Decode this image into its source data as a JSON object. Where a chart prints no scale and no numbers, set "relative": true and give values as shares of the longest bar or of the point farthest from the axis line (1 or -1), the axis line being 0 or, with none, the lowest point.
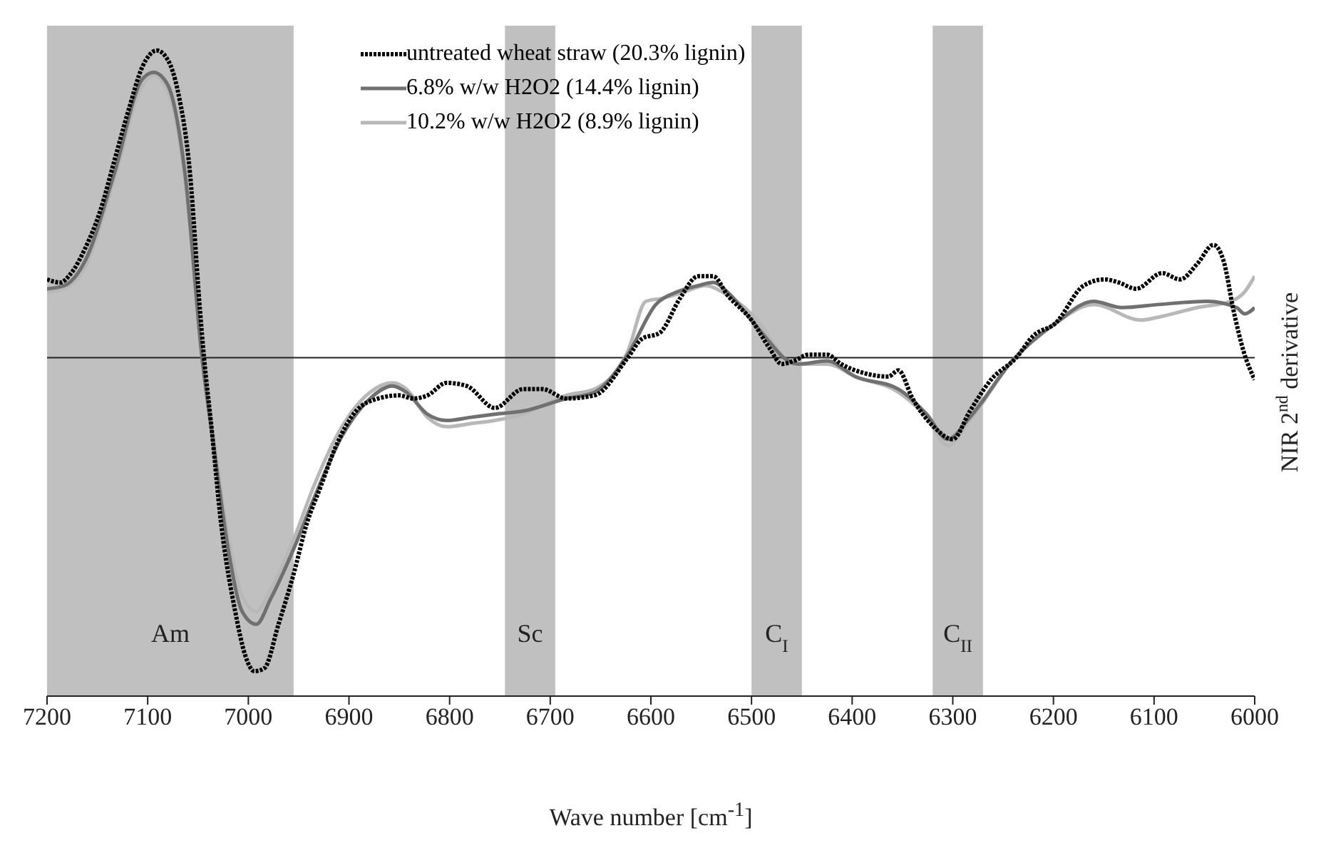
{
  "chart_data": {
    "type": "line",
    "relative": true,
    "xlabel": "Wave number [cm$^{-1}$]",
    "ylabel": "NIR 2$^{nd}$ derivative",
    "legend": "top",
    "marker": "none",
    "xlim": [
      7200,
      6000
    ],
    "xticks": [
      7200,
      7100,
      7000,
      6900,
      6800,
      6700,
      6600,
      6500,
      6400,
      6300,
      6200,
      6100,
      6000
    ],
    "bands": [
      {
        "axis": "x",
        "from": 7200,
        "to": 6955,
        "label": "Am",
        "color": "#c0c0c0"
      },
      {
        "axis": "x",
        "from": 6745,
        "to": 6695,
        "label": "Sc",
        "color": "#c0c0c0"
      },
      {
        "axis": "x",
        "from": 6500,
        "to": 6450,
        "label": "C$_{I}$",
        "color": "#c0c0c0"
      },
      {
        "axis": "x",
        "from": 6320,
        "to": 6270,
        "label": "C$_{II}$",
        "color": "#c0c0c0"
      }
    ],
    "series": [
      {
        "name": "untreated wheat straw (20.3% lignin)",
        "color": "#000000",
        "line_style": "dotted",
        "x": [
          7200,
          7187,
          7176,
          7162,
          7147,
          7133,
          7119,
          7105,
          7091,
          7080,
          7070,
          7058,
          7048,
          7044,
          7037,
          7027,
          7013,
          7003,
          6994,
          6984,
          6970,
          6955,
          6942,
          6928,
          6914,
          6893,
          6871,
          6850,
          6836,
          6822,
          6803,
          6783,
          6755,
          6727,
          6708,
          6684,
          6656,
          6623,
          6609,
          6591,
          6571,
          6553,
          6538,
          6524,
          6500,
          6482,
          6470,
          6458,
          6443,
          6425,
          6411,
          6387,
          6364,
          6354,
          6340,
          6319,
          6300,
          6283,
          6262,
          6237,
          6220,
          6198,
          6170,
          6149,
          6135,
          6118,
          6092,
          6074,
          6057,
          6041,
          6031,
          6021,
          6011,
          6000
        ],
        "values": [
          0.25,
          0.24,
          0.27,
          0.35,
          0.47,
          0.63,
          0.79,
          0.93,
          0.98,
          0.95,
          0.85,
          0.59,
          0.15,
          0,
          -0.21,
          -0.53,
          -0.81,
          -0.95,
          -1,
          -0.99,
          -0.85,
          -0.69,
          -0.53,
          -0.41,
          -0.29,
          -0.17,
          -0.13,
          -0.12,
          -0.13,
          -0.12,
          -0.08,
          -0.09,
          -0.16,
          -0.1,
          -0.1,
          -0.13,
          -0.12,
          0,
          0.06,
          0.08,
          0.19,
          0.26,
          0.26,
          0.2,
          0.12,
          0.03,
          -0.02,
          -0.01,
          0.01,
          0.01,
          -0.02,
          -0.05,
          -0.06,
          -0.04,
          -0.13,
          -0.22,
          -0.26,
          -0.17,
          -0.07,
          0,
          0.07,
          0.11,
          0.23,
          0.25,
          0.24,
          0.22,
          0.27,
          0.25,
          0.3,
          0.36,
          0.31,
          0.15,
          0.02,
          -0.07
        ]
      },
      {
        "name": "6.8% w/w H2O2 (14.4% lignin)",
        "color": "#707070",
        "line_style": "solid",
        "x": [
          7200,
          7183,
          7162,
          7133,
          7105,
          7094,
          7080,
          7063,
          7046,
          7034,
          7020,
          7006,
          6992,
          6978,
          6955,
          6935,
          6907,
          6879,
          6857,
          6843,
          6822,
          6803,
          6779,
          6755,
          6727,
          6684,
          6656,
          6623,
          6595,
          6574,
          6553,
          6538,
          6524,
          6500,
          6482,
          6468,
          6453,
          6425,
          6397,
          6354,
          6326,
          6305,
          6283,
          6241,
          6198,
          6160,
          6132,
          6095,
          6047,
          6018,
          6010,
          6000
        ],
        "values": [
          0.22,
          0.23,
          0.31,
          0.59,
          0.89,
          0.91,
          0.87,
          0.59,
          0,
          -0.29,
          -0.61,
          -0.81,
          -0.85,
          -0.77,
          -0.61,
          -0.45,
          -0.25,
          -0.13,
          -0.09,
          -0.11,
          -0.18,
          -0.2,
          -0.19,
          -0.18,
          -0.17,
          -0.13,
          -0.11,
          0.01,
          0.17,
          0.21,
          0.23,
          0.24,
          0.21,
          0.12,
          0.05,
          0,
          -0.02,
          -0.01,
          -0.06,
          -0.1,
          -0.18,
          -0.26,
          -0.19,
          -0.01,
          0.11,
          0.18,
          0.16,
          0.17,
          0.18,
          0.16,
          0.14,
          0.16
        ]
      },
      {
        "name": "10.2% w/w H2O2 (8.9% lignin)",
        "color": "#b8b8b8",
        "line_style": "solid",
        "x": [
          7200,
          7183,
          7162,
          7133,
          7105,
          7094,
          7080,
          7063,
          7046,
          7034,
          7020,
          7006,
          6992,
          6978,
          6955,
          6935,
          6907,
          6879,
          6857,
          6843,
          6822,
          6803,
          6779,
          6755,
          6727,
          6684,
          6656,
          6623,
          6605,
          6588,
          6567,
          6546,
          6524,
          6492,
          6475,
          6460,
          6425,
          6397,
          6354,
          6326,
          6305,
          6283,
          6241,
          6198,
          6160,
          6113,
          6095,
          6057,
          6024,
          6010,
          6000
        ],
        "values": [
          0.21,
          0.22,
          0.29,
          0.57,
          0.87,
          0.9,
          0.85,
          0.57,
          0,
          -0.27,
          -0.57,
          -0.76,
          -0.81,
          -0.74,
          -0.58,
          -0.41,
          -0.22,
          -0.11,
          -0.08,
          -0.1,
          -0.19,
          -0.22,
          -0.21,
          -0.2,
          -0.18,
          -0.12,
          -0.1,
          0.02,
          0.18,
          0.19,
          0.21,
          0.23,
          0.2,
          0.11,
          0.03,
          -0.02,
          -0.02,
          -0.06,
          -0.11,
          -0.19,
          -0.28,
          -0.2,
          -0.01,
          0.11,
          0.17,
          0.12,
          0.13,
          0.16,
          0.18,
          0.21,
          0.26
        ]
      }
    ]
  }
}
